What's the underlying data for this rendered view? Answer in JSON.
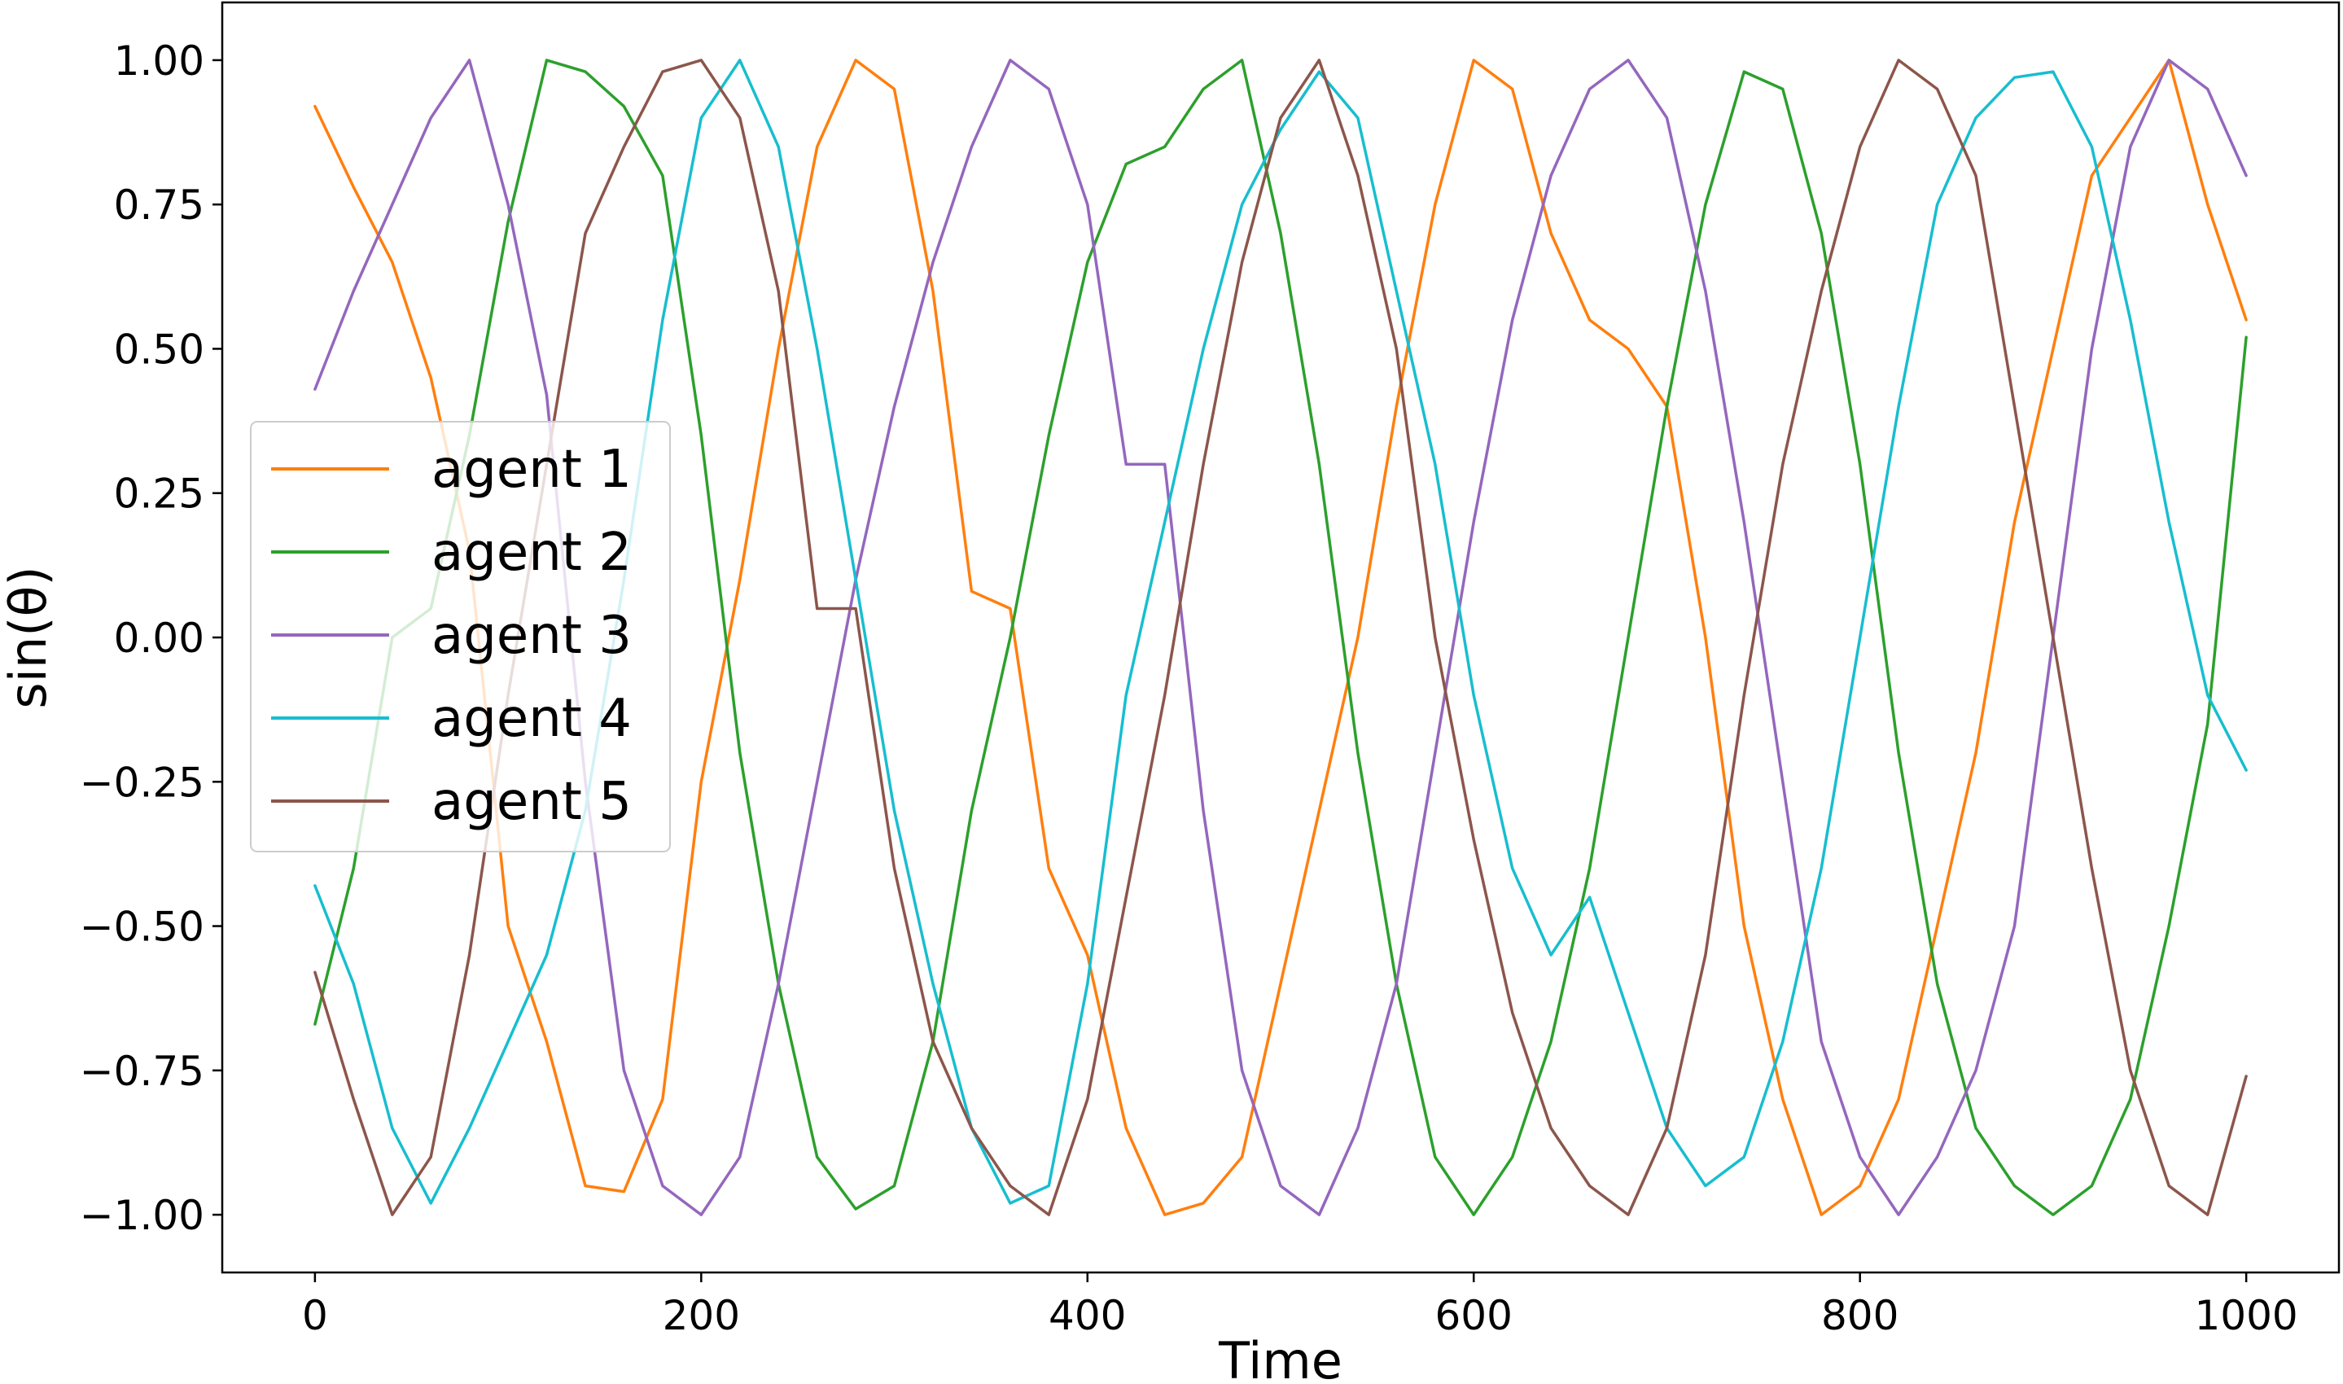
{
  "chart_data": {
    "type": "line",
    "title": "",
    "xlabel": "Time",
    "ylabel": "sin(θ)",
    "xlim": [
      -48,
      1048
    ],
    "ylim": [
      -1.1,
      1.1
    ],
    "xticks": [
      0,
      200,
      400,
      600,
      800,
      1000
    ],
    "xtick_labels": [
      "0",
      "200",
      "400",
      "600",
      "800",
      "1000"
    ],
    "yticks": [
      -1.0,
      -0.75,
      -0.5,
      -0.25,
      0.0,
      0.25,
      0.5,
      0.75,
      1.0
    ],
    "ytick_labels": [
      "−1.00",
      "−0.75",
      "−0.50",
      "−0.25",
      "0.00",
      "0.25",
      "0.50",
      "0.75",
      "1.00"
    ],
    "grid": false,
    "legend_position": "center-left",
    "series": [
      {
        "name": "agent 1",
        "color": "#ff7f0e",
        "x": [
          0,
          20,
          40,
          60,
          80,
          100,
          120,
          140,
          160,
          180,
          200,
          220,
          240,
          260,
          280,
          300,
          320,
          340,
          360,
          380,
          400,
          420,
          440,
          460,
          480,
          500,
          520,
          540,
          560,
          580,
          600,
          620,
          640,
          660,
          680,
          700,
          720,
          740,
          760,
          780,
          800,
          820,
          840,
          860,
          880,
          900,
          920,
          940,
          960,
          980,
          1000
        ],
        "y": [
          0.92,
          0.78,
          0.65,
          0.45,
          0.15,
          -0.5,
          -0.7,
          -0.95,
          -0.96,
          -0.8,
          -0.25,
          0.1,
          0.5,
          0.85,
          1.0,
          0.95,
          0.6,
          0.08,
          0.05,
          -0.4,
          -0.55,
          -0.85,
          -1.0,
          -0.98,
          -0.9,
          -0.6,
          -0.3,
          0.0,
          0.4,
          0.75,
          1.0,
          0.95,
          0.7,
          0.55,
          0.5,
          0.4,
          0.0,
          -0.5,
          -0.8,
          -1.0,
          -0.95,
          -0.8,
          -0.5,
          -0.2,
          0.2,
          0.5,
          0.8,
          0.9,
          1.0,
          0.75,
          0.55
        ]
      },
      {
        "name": "agent 2",
        "color": "#2ca02c",
        "x": [
          0,
          20,
          40,
          60,
          80,
          100,
          120,
          140,
          160,
          180,
          200,
          220,
          240,
          260,
          280,
          300,
          320,
          340,
          360,
          380,
          400,
          420,
          440,
          460,
          480,
          500,
          520,
          540,
          560,
          580,
          600,
          620,
          640,
          660,
          680,
          700,
          720,
          740,
          760,
          780,
          800,
          820,
          840,
          860,
          880,
          900,
          920,
          940,
          960,
          980,
          1000
        ],
        "y": [
          -0.67,
          -0.4,
          0.0,
          0.05,
          0.35,
          0.72,
          1.0,
          0.98,
          0.92,
          0.8,
          0.35,
          -0.2,
          -0.6,
          -0.9,
          -0.99,
          -0.95,
          -0.7,
          -0.3,
          0.0,
          0.35,
          0.65,
          0.82,
          0.85,
          0.95,
          1.0,
          0.7,
          0.3,
          -0.2,
          -0.6,
          -0.9,
          -1.0,
          -0.9,
          -0.7,
          -0.4,
          0.0,
          0.4,
          0.75,
          0.98,
          0.95,
          0.7,
          0.3,
          -0.2,
          -0.6,
          -0.85,
          -0.95,
          -1.0,
          -0.95,
          -0.8,
          -0.5,
          -0.15,
          0.52
        ]
      },
      {
        "name": "agent 3",
        "color": "#9467bd",
        "x": [
          0,
          20,
          40,
          60,
          80,
          100,
          120,
          140,
          160,
          180,
          200,
          220,
          240,
          260,
          280,
          300,
          320,
          340,
          360,
          380,
          400,
          420,
          440,
          460,
          480,
          500,
          520,
          540,
          560,
          580,
          600,
          620,
          640,
          660,
          680,
          700,
          720,
          740,
          760,
          780,
          800,
          820,
          840,
          860,
          880,
          900,
          920,
          940,
          960,
          980,
          1000
        ],
        "y": [
          0.43,
          0.6,
          0.75,
          0.9,
          1.0,
          0.75,
          0.42,
          -0.25,
          -0.75,
          -0.95,
          -1.0,
          -0.9,
          -0.6,
          -0.25,
          0.1,
          0.4,
          0.65,
          0.85,
          1.0,
          0.95,
          0.75,
          0.3,
          0.3,
          -0.3,
          -0.75,
          -0.95,
          -1.0,
          -0.85,
          -0.6,
          -0.2,
          0.2,
          0.55,
          0.8,
          0.95,
          1.0,
          0.9,
          0.6,
          0.2,
          -0.25,
          -0.7,
          -0.9,
          -1.0,
          -0.9,
          -0.75,
          -0.5,
          0.0,
          0.5,
          0.85,
          1.0,
          0.95,
          0.8
        ]
      },
      {
        "name": "agent 4",
        "color": "#17becf",
        "x": [
          0,
          20,
          40,
          60,
          80,
          100,
          120,
          140,
          160,
          180,
          200,
          220,
          240,
          260,
          280,
          300,
          320,
          340,
          360,
          380,
          400,
          420,
          440,
          460,
          480,
          500,
          520,
          540,
          560,
          580,
          600,
          620,
          640,
          660,
          680,
          700,
          720,
          740,
          760,
          780,
          800,
          820,
          840,
          860,
          880,
          900,
          920,
          940,
          960,
          980,
          1000
        ],
        "y": [
          -0.43,
          -0.6,
          -0.85,
          -0.98,
          -0.85,
          -0.7,
          -0.55,
          -0.3,
          0.1,
          0.55,
          0.9,
          1.0,
          0.85,
          0.5,
          0.1,
          -0.3,
          -0.6,
          -0.85,
          -0.98,
          -0.95,
          -0.6,
          -0.1,
          0.2,
          0.5,
          0.75,
          0.88,
          0.98,
          0.9,
          0.6,
          0.3,
          -0.1,
          -0.4,
          -0.55,
          -0.45,
          -0.65,
          -0.85,
          -0.95,
          -0.9,
          -0.7,
          -0.4,
          0.0,
          0.4,
          0.75,
          0.9,
          0.97,
          0.98,
          0.85,
          0.55,
          0.2,
          -0.1,
          -0.23
        ]
      },
      {
        "name": "agent 5",
        "color": "#8c564b",
        "x": [
          0,
          20,
          40,
          60,
          80,
          100,
          120,
          140,
          160,
          180,
          200,
          220,
          240,
          260,
          280,
          300,
          320,
          340,
          360,
          380,
          400,
          420,
          440,
          460,
          480,
          500,
          520,
          540,
          560,
          580,
          600,
          620,
          640,
          660,
          680,
          700,
          720,
          740,
          760,
          780,
          800,
          820,
          840,
          860,
          880,
          900,
          920,
          940,
          960,
          980,
          1000
        ],
        "y": [
          -0.58,
          -0.8,
          -1.0,
          -0.9,
          -0.55,
          -0.1,
          0.3,
          0.7,
          0.85,
          0.98,
          1.0,
          0.9,
          0.6,
          0.05,
          0.05,
          -0.4,
          -0.7,
          -0.85,
          -0.95,
          -1.0,
          -0.8,
          -0.45,
          -0.1,
          0.3,
          0.65,
          0.9,
          1.0,
          0.8,
          0.5,
          0.0,
          -0.35,
          -0.65,
          -0.85,
          -0.95,
          -1.0,
          -0.85,
          -0.55,
          -0.1,
          0.3,
          0.6,
          0.85,
          1.0,
          0.95,
          0.8,
          0.4,
          0.0,
          -0.4,
          -0.75,
          -0.95,
          -1.0,
          -0.76
        ]
      }
    ]
  }
}
